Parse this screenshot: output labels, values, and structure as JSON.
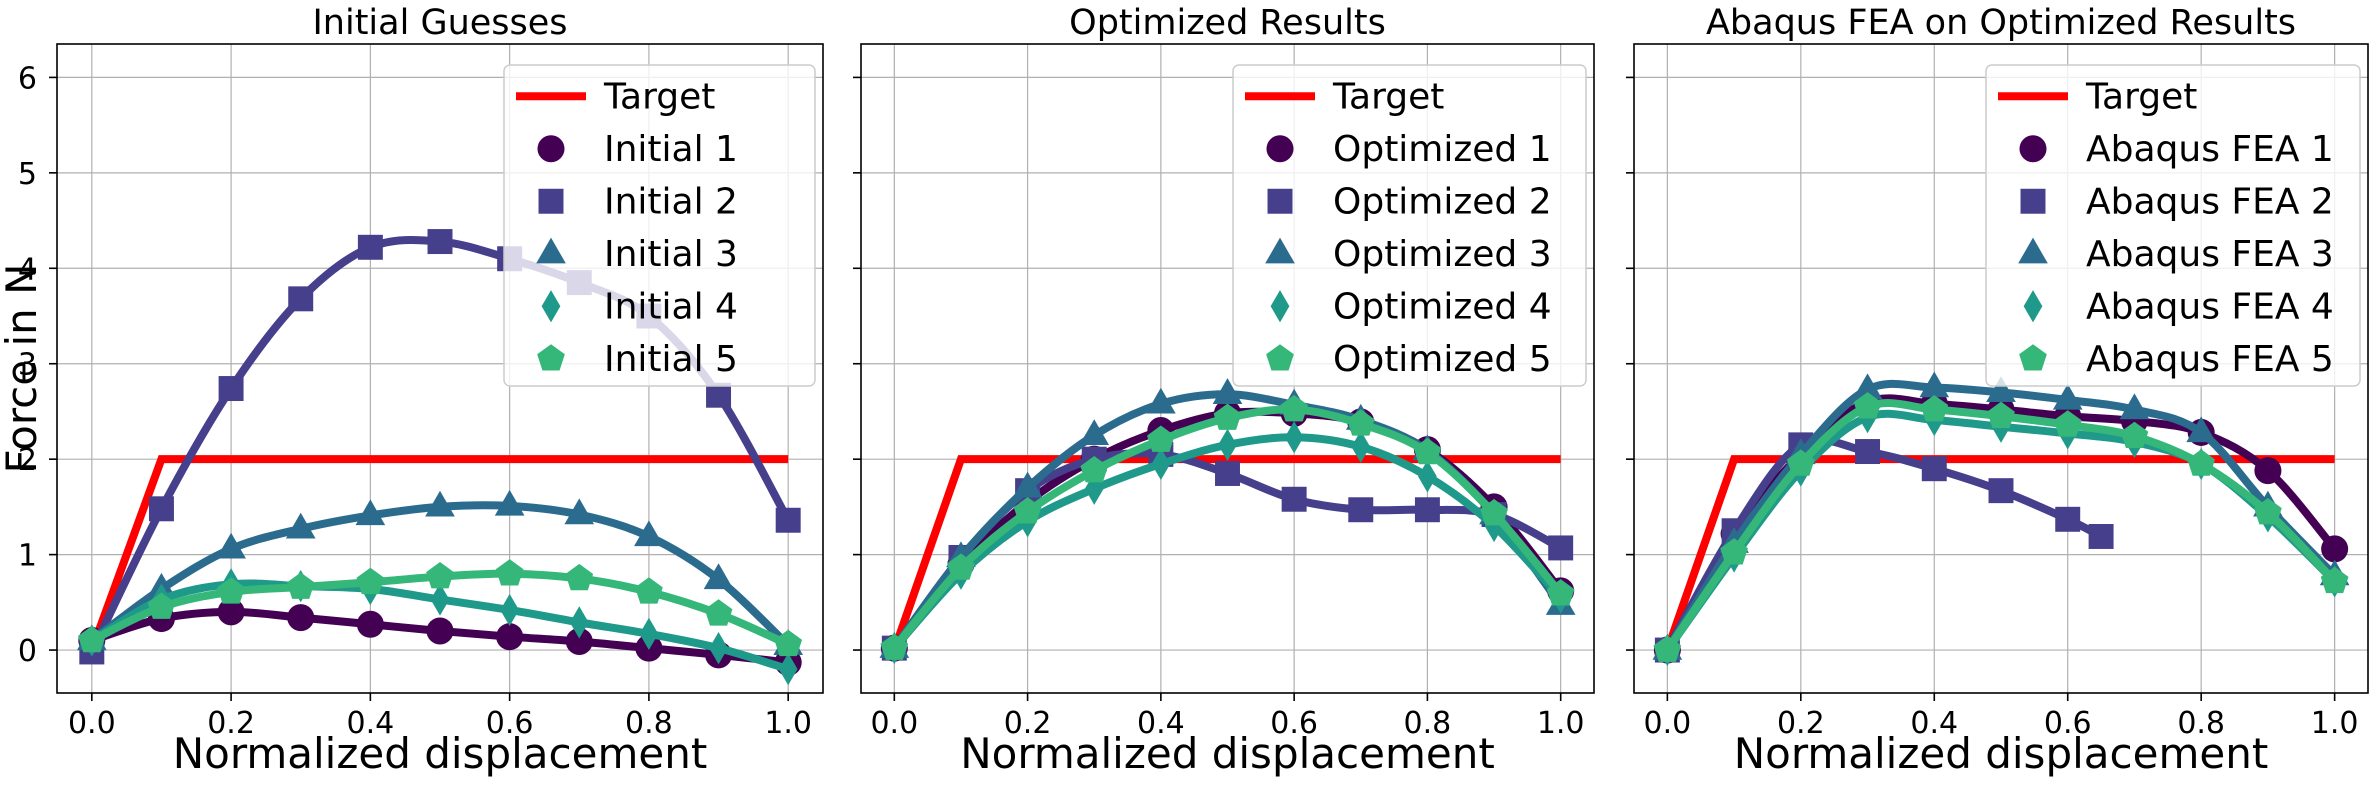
{
  "colors": {
    "target": "#ff0000",
    "series": [
      "#440154",
      "#463f8c",
      "#2b6c8e",
      "#1f9a8a",
      "#35b779"
    ],
    "grid": "#b0b0b0"
  },
  "chart_data": [
    {
      "type": "line",
      "title": "Initial Guesses",
      "xlabel": "Normalized displacement",
      "ylabel": "Force in N",
      "xlim": [
        -0.05,
        1.05
      ],
      "ylim": [
        -0.45,
        6.35
      ],
      "xticks": [
        0.0,
        0.2,
        0.4,
        0.6,
        0.8,
        1.0
      ],
      "xtick_labels": [
        "0.0",
        "0.2",
        "0.4",
        "0.6",
        "0.8",
        "1.0"
      ],
      "yticks": [
        0,
        1,
        2,
        3,
        4,
        5,
        6
      ],
      "ytick_labels": [
        "0",
        "1",
        "2",
        "3",
        "4",
        "5",
        "6"
      ],
      "grid": true,
      "legend": "upper right",
      "target": {
        "name": "Target",
        "x": [
          0.0,
          0.1,
          1.0
        ],
        "y": [
          0.0,
          2.0,
          2.0
        ]
      },
      "series": [
        {
          "name": "Initial 1",
          "marker": "circle",
          "x": [
            0.0,
            0.1,
            0.2,
            0.3,
            0.4,
            0.5,
            0.6,
            0.7,
            0.8,
            0.9,
            1.0
          ],
          "y": [
            0.1,
            0.33,
            0.4,
            0.34,
            0.27,
            0.2,
            0.14,
            0.09,
            0.02,
            -0.05,
            -0.13
          ]
        },
        {
          "name": "Initial 2",
          "marker": "square",
          "x": [
            0.0,
            0.1,
            0.2,
            0.3,
            0.4,
            0.5,
            0.6,
            0.7,
            0.8,
            0.9,
            1.0
          ],
          "y": [
            -0.02,
            1.48,
            2.74,
            3.68,
            4.22,
            4.28,
            4.1,
            3.85,
            3.5,
            2.67,
            1.36
          ]
        },
        {
          "name": "Initial 3",
          "marker": "triangle",
          "x": [
            0.0,
            0.1,
            0.2,
            0.3,
            0.4,
            0.5,
            0.6,
            0.7,
            0.8,
            0.9,
            1.0
          ],
          "y": [
            0.1,
            0.64,
            1.06,
            1.27,
            1.41,
            1.5,
            1.51,
            1.42,
            1.19,
            0.74,
            0.05
          ]
        },
        {
          "name": "Initial 4",
          "marker": "diamond",
          "x": [
            0.0,
            0.1,
            0.2,
            0.3,
            0.4,
            0.5,
            0.6,
            0.7,
            0.8,
            0.9,
            1.0
          ],
          "y": [
            0.1,
            0.53,
            0.69,
            0.67,
            0.64,
            0.53,
            0.42,
            0.29,
            0.17,
            0.02,
            -0.2
          ]
        },
        {
          "name": "Initial 5",
          "marker": "pentagon",
          "x": [
            0.0,
            0.1,
            0.2,
            0.3,
            0.4,
            0.5,
            0.6,
            0.7,
            0.8,
            0.9,
            1.0
          ],
          "y": [
            0.1,
            0.45,
            0.61,
            0.66,
            0.71,
            0.77,
            0.8,
            0.75,
            0.61,
            0.38,
            0.06
          ]
        }
      ]
    },
    {
      "type": "line",
      "title": "Optimized Results",
      "xlabel": "Normalized displacement",
      "ylabel": "",
      "xlim": [
        -0.05,
        1.05
      ],
      "ylim": [
        -0.45,
        6.35
      ],
      "xticks": [
        0.0,
        0.2,
        0.4,
        0.6,
        0.8,
        1.0
      ],
      "xtick_labels": [
        "0.0",
        "0.2",
        "0.4",
        "0.6",
        "0.8",
        "1.0"
      ],
      "yticks": [
        0,
        1,
        2,
        3,
        4,
        5,
        6
      ],
      "ytick_labels": [],
      "grid": true,
      "legend": "upper right",
      "target": {
        "name": "Target",
        "x": [
          0.0,
          0.1,
          1.0
        ],
        "y": [
          0.0,
          2.0,
          2.0
        ]
      },
      "series": [
        {
          "name": "Optimized 1",
          "marker": "circle",
          "x": [
            0.0,
            0.1,
            0.2,
            0.3,
            0.4,
            0.5,
            0.6,
            0.7,
            0.8,
            0.9,
            1.0
          ],
          "y": [
            0.02,
            0.9,
            1.55,
            2.0,
            2.3,
            2.48,
            2.48,
            2.39,
            2.1,
            1.5,
            0.62
          ]
        },
        {
          "name": "Optimized 2",
          "marker": "square",
          "x": [
            0.0,
            0.1,
            0.2,
            0.3,
            0.4,
            0.5,
            0.6,
            0.7,
            0.8,
            0.9,
            1.0
          ],
          "y": [
            0.02,
            0.97,
            1.67,
            2.0,
            2.05,
            1.85,
            1.58,
            1.47,
            1.47,
            1.42,
            1.07
          ]
        },
        {
          "name": "Optimized 3",
          "marker": "triangle",
          "x": [
            0.0,
            0.1,
            0.2,
            0.3,
            0.4,
            0.5,
            0.6,
            0.7,
            0.8,
            0.9,
            1.0
          ],
          "y": [
            0.02,
            0.97,
            1.7,
            2.25,
            2.58,
            2.68,
            2.57,
            2.41,
            2.09,
            1.42,
            0.47
          ]
        },
        {
          "name": "Optimized 4",
          "marker": "diamond",
          "x": [
            0.0,
            0.1,
            0.2,
            0.3,
            0.4,
            0.5,
            0.6,
            0.7,
            0.8,
            0.9,
            1.0
          ],
          "y": [
            0.02,
            0.8,
            1.35,
            1.69,
            1.95,
            2.15,
            2.23,
            2.13,
            1.82,
            1.3,
            0.55
          ]
        },
        {
          "name": "Optimized 5",
          "marker": "pentagon",
          "x": [
            0.0,
            0.1,
            0.2,
            0.3,
            0.4,
            0.5,
            0.6,
            0.7,
            0.8,
            0.9,
            1.0
          ],
          "y": [
            0.02,
            0.86,
            1.45,
            1.88,
            2.2,
            2.43,
            2.52,
            2.37,
            2.07,
            1.43,
            0.59
          ]
        }
      ]
    },
    {
      "type": "line",
      "title": "Abaqus FEA on Optimized Results",
      "xlabel": "Normalized displacement",
      "ylabel": "",
      "xlim": [
        -0.05,
        1.05
      ],
      "ylim": [
        -0.45,
        6.35
      ],
      "xticks": [
        0.0,
        0.2,
        0.4,
        0.6,
        0.8,
        1.0
      ],
      "xtick_labels": [
        "0.0",
        "0.2",
        "0.4",
        "0.6",
        "0.8",
        "1.0"
      ],
      "yticks": [
        0,
        1,
        2,
        3,
        4,
        5,
        6
      ],
      "ytick_labels": [],
      "grid": true,
      "legend": "upper right",
      "target": {
        "name": "Target",
        "x": [
          0.0,
          0.1,
          1.0
        ],
        "y": [
          0.0,
          2.0,
          2.0
        ]
      },
      "series": [
        {
          "name": "Abaqus FEA 1",
          "marker": "circle",
          "x": [
            0.0,
            0.1,
            0.2,
            0.3,
            0.4,
            0.5,
            0.6,
            0.7,
            0.8,
            0.9,
            1.0
          ],
          "y": [
            0.0,
            1.22,
            2.05,
            2.6,
            2.58,
            2.52,
            2.45,
            2.4,
            2.28,
            1.88,
            1.06
          ]
        },
        {
          "name": "Abaqus FEA 2",
          "marker": "square",
          "x": [
            0.0,
            0.1,
            0.2,
            0.3,
            0.4,
            0.5,
            0.6,
            0.65
          ],
          "y": [
            0.0,
            1.25,
            2.15,
            2.08,
            1.9,
            1.67,
            1.37,
            1.19
          ]
        },
        {
          "name": "Abaqus FEA 3",
          "marker": "triangle",
          "x": [
            0.0,
            0.1,
            0.2,
            0.3,
            0.4,
            0.5,
            0.6,
            0.7,
            0.8,
            0.9,
            1.0
          ],
          "y": [
            0.0,
            1.12,
            2.05,
            2.73,
            2.75,
            2.7,
            2.62,
            2.52,
            2.28,
            1.5,
            0.78
          ]
        },
        {
          "name": "Abaqus FEA 4",
          "marker": "diamond",
          "x": [
            0.0,
            0.1,
            0.2,
            0.3,
            0.4,
            0.5,
            0.6,
            0.7,
            0.8,
            0.9,
            1.0
          ],
          "y": [
            0.0,
            0.98,
            1.88,
            2.44,
            2.41,
            2.34,
            2.27,
            2.18,
            1.95,
            1.4,
            0.72
          ]
        },
        {
          "name": "Abaqus FEA 5",
          "marker": "pentagon",
          "x": [
            0.0,
            0.1,
            0.2,
            0.3,
            0.4,
            0.5,
            0.6,
            0.7,
            0.8,
            0.9,
            1.0
          ],
          "y": [
            0.0,
            1.02,
            1.95,
            2.55,
            2.52,
            2.45,
            2.36,
            2.24,
            1.95,
            1.44,
            0.72
          ]
        }
      ]
    }
  ]
}
